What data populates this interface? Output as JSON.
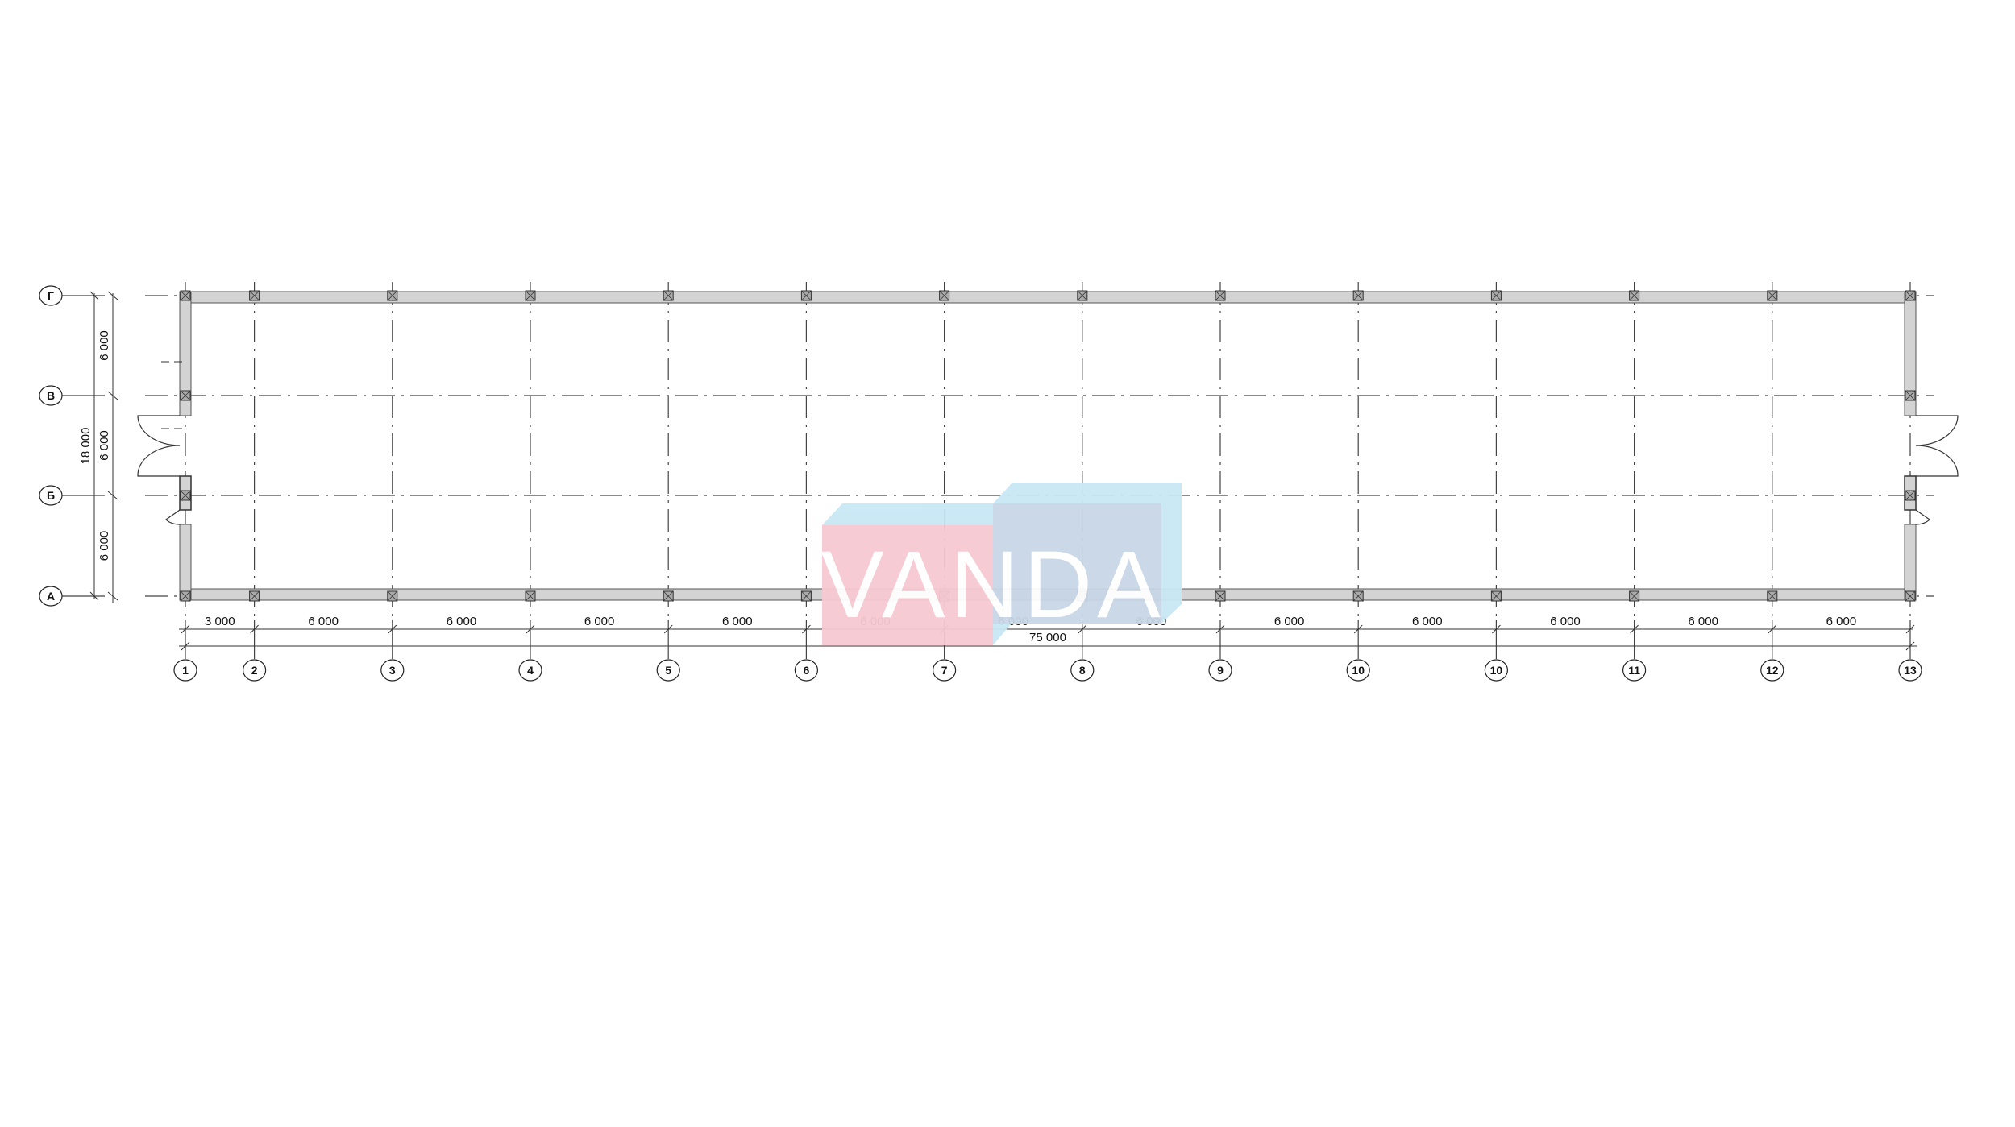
{
  "column_axes": [
    "1",
    "2",
    "3",
    "4",
    "5",
    "6",
    "7",
    "8",
    "9",
    "10",
    "10",
    "11",
    "12",
    "13"
  ],
  "row_axes": [
    "Г",
    "В",
    "Б",
    "А"
  ],
  "column_spacings": [
    "3 000",
    "6 000",
    "6 000",
    "6 000",
    "6 000",
    "6 000",
    "6 000",
    "6 000",
    "6 000",
    "6 000",
    "6 000",
    "6 000",
    "6 000"
  ],
  "row_spacings": [
    "6 000",
    "6 000",
    "6 000"
  ],
  "overall_length": "75 000",
  "overall_width": "18 000",
  "watermark": {
    "text": "VANDA",
    "colors": {
      "pink": "#f7c9d1",
      "blue": "#c9e8f5",
      "slate": "#c8d6e6"
    }
  },
  "colors": {
    "wall": "#d3d3d3",
    "line": "#333333"
  }
}
